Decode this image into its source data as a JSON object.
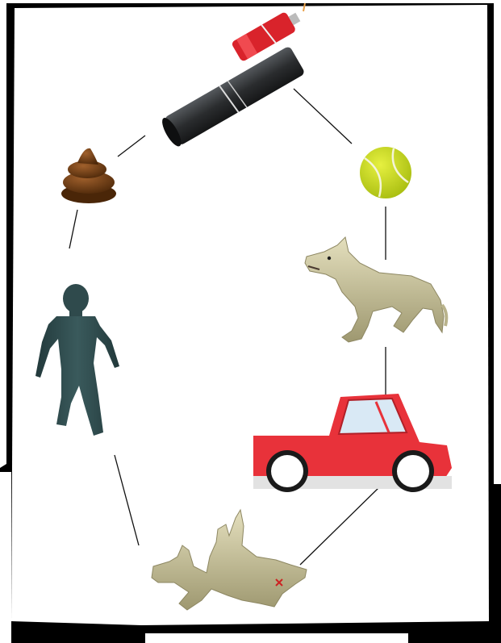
{
  "diagram": {
    "type": "cycle",
    "nodes": [
      {
        "id": "firecracker",
        "icon": "firecracker-icon"
      },
      {
        "id": "tennis-ball",
        "icon": "tennis-ball-icon"
      },
      {
        "id": "dog-barking",
        "icon": "barking-dog-icon"
      },
      {
        "id": "car",
        "icon": "red-car-icon"
      },
      {
        "id": "dead-dog",
        "icon": "dead-dog-icon"
      },
      {
        "id": "person",
        "icon": "person-icon"
      },
      {
        "id": "poop",
        "icon": "poop-icon"
      }
    ],
    "edges": [
      [
        "firecracker",
        "tennis-ball"
      ],
      [
        "tennis-ball",
        "dog-barking"
      ],
      [
        "dog-barking",
        "car"
      ],
      [
        "car",
        "dead-dog"
      ],
      [
        "dead-dog",
        "person"
      ],
      [
        "person",
        "poop"
      ],
      [
        "poop",
        "firecracker"
      ]
    ]
  },
  "colors": {
    "frame": "#000000",
    "firecracker_body": "#2b2d2f",
    "firecracker_red": "#e0242c",
    "ball": "#c8dc22",
    "dog": "#cfc9a0",
    "car_red": "#e8333b",
    "person": "#2f4a4c",
    "poop": "#6b3a1a"
  }
}
